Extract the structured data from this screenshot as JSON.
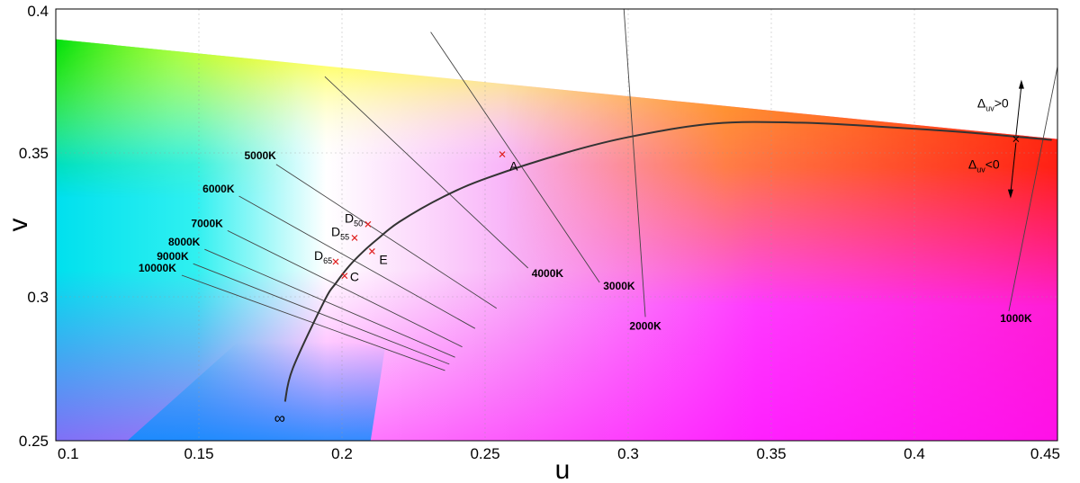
{
  "chart_data": {
    "type": "scatter",
    "xlabel": "u",
    "ylabel": "v",
    "xlim": [
      0.1,
      0.45
    ],
    "ylim": [
      0.25,
      0.4
    ],
    "x_ticks": [
      "0.1",
      "0.15",
      "0.2",
      "0.25",
      "0.3",
      "0.35",
      "0.4",
      "0.45"
    ],
    "y_ticks": [
      "0.25",
      "0.3",
      "0.35",
      "0.4"
    ],
    "planckian_locus": [
      [
        0.1801,
        0.2636
      ],
      [
        0.1828,
        0.2751
      ],
      [
        0.1938,
        0.2985
      ],
      [
        0.1979,
        0.3048
      ],
      [
        0.2025,
        0.3107
      ],
      [
        0.2075,
        0.3158
      ],
      [
        0.2127,
        0.3203
      ],
      [
        0.2201,
        0.3261
      ],
      [
        0.2355,
        0.3348
      ],
      [
        0.2508,
        0.3413
      ],
      [
        0.278,
        0.35
      ],
      [
        0.3007,
        0.3556
      ],
      [
        0.33,
        0.3602
      ],
      [
        0.36,
        0.3605
      ],
      [
        0.39,
        0.359
      ],
      [
        0.42,
        0.357
      ],
      [
        0.448,
        0.3545
      ]
    ],
    "infinity_label": "∞",
    "isotherms": [
      {
        "label": "10000K",
        "start": [
          0.144,
          0.3075
        ],
        "end": [
          0.236,
          0.2744
        ]
      },
      {
        "label": "9000K",
        "start": [
          0.148,
          0.3115
        ],
        "end": [
          0.2375,
          0.2766
        ]
      },
      {
        "label": "8000K",
        "start": [
          0.152,
          0.3165
        ],
        "end": [
          0.2395,
          0.279
        ]
      },
      {
        "label": "7000K",
        "start": [
          0.16,
          0.323
        ],
        "end": [
          0.242,
          0.2826
        ]
      },
      {
        "label": "6000K",
        "start": [
          0.164,
          0.335
        ],
        "end": [
          0.2465,
          0.289
        ]
      },
      {
        "label": "5000K",
        "start": [
          0.177,
          0.346
        ],
        "end": [
          0.254,
          0.296
        ]
      },
      {
        "label": "4000K",
        "start": [
          0.194,
          0.3765
        ],
        "end": [
          0.265,
          0.31
        ]
      },
      {
        "label": "3000K",
        "start": [
          0.231,
          0.392
        ],
        "end": [
          0.29,
          0.305
        ]
      },
      {
        "label": "2000K",
        "start": [
          0.2985,
          0.4
        ],
        "end": [
          0.306,
          0.293
        ]
      },
      {
        "label": "1000K",
        "start": [
          0.454,
          0.4
        ],
        "end": [
          0.433,
          0.295
        ]
      }
    ],
    "points": [
      {
        "label": "A",
        "sub": "",
        "u": 0.256,
        "v": 0.3495
      },
      {
        "label": "D",
        "sub": "50",
        "u": 0.2091,
        "v": 0.3252
      },
      {
        "label": "D",
        "sub": "55",
        "u": 0.2044,
        "v": 0.3205
      },
      {
        "label": "E",
        "sub": "",
        "u": 0.2105,
        "v": 0.3158
      },
      {
        "label": "D",
        "sub": "65",
        "u": 0.1978,
        "v": 0.3122
      },
      {
        "label": "C",
        "sub": "",
        "u": 0.2009,
        "v": 0.3073
      }
    ],
    "duv_annotations": [
      {
        "delta": "Δ",
        "sub": "uv",
        "sign": ">0"
      },
      {
        "delta": "Δ",
        "sub": "uv",
        "sign": "<0"
      }
    ],
    "colors": {
      "locus": "#333333",
      "isotherm": "#444444",
      "point_marker": "#e02020",
      "background": "#ffffff"
    },
    "grid": true
  }
}
